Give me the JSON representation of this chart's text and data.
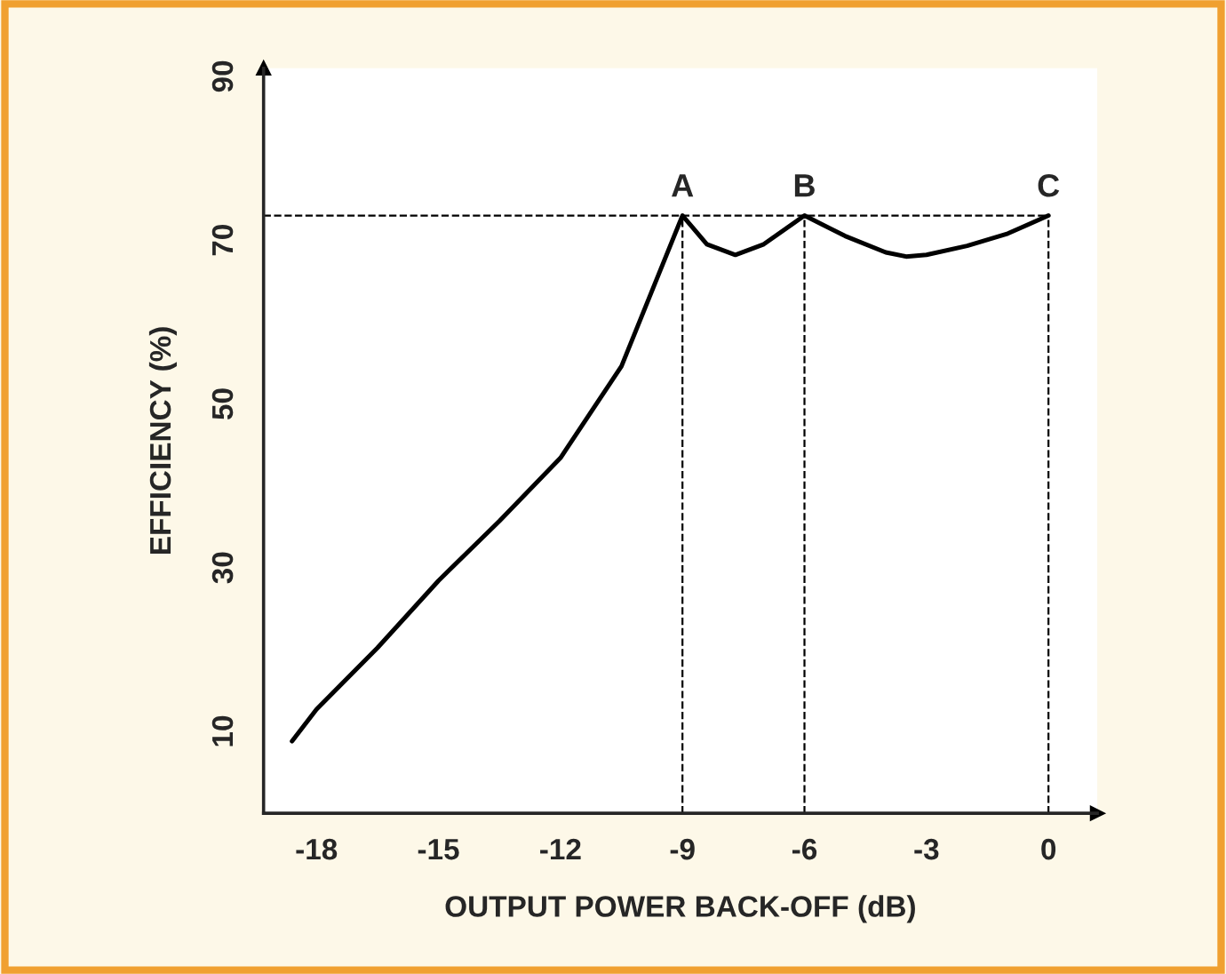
{
  "chart_data": {
    "type": "line",
    "xlabel": "OUTPUT POWER BACK-OFF (dB)",
    "ylabel": "EFFICIENCY (%)",
    "x": [
      -18.6,
      -18,
      -16.5,
      -15,
      -13.5,
      -12,
      -10.5,
      -9,
      -8.4,
      -7.7,
      -7,
      -6,
      -5,
      -4,
      -3.5,
      -3,
      -2,
      -1,
      0
    ],
    "series": [
      {
        "color": "#000000",
        "values": [
          8.8,
          12.7,
          20.2,
          28.4,
          35.7,
          43.4,
          54.6,
          73,
          69.5,
          68.2,
          69.5,
          73,
          70.5,
          68.5,
          68,
          68.2,
          69.3,
          70.8,
          73
        ]
      }
    ],
    "xlim": [
      -19.3,
      1.2
    ],
    "ylim": [
      0,
      91
    ],
    "xticks": [
      -18,
      -15,
      -12,
      -9,
      -6,
      -3,
      0
    ],
    "yticks": [
      10,
      30,
      50,
      70,
      90
    ],
    "ref_lines": [
      {
        "axis": "x",
        "value": -9,
        "line_style": "dashed",
        "color": "#000000"
      },
      {
        "axis": "x",
        "value": -6,
        "line_style": "dashed",
        "color": "#000000"
      },
      {
        "axis": "x",
        "value": 0,
        "line_style": "dashed",
        "color": "#000000"
      },
      {
        "axis": "y",
        "value": 73,
        "line_style": "dashed",
        "color": "#000000"
      }
    ],
    "annotations": [
      {
        "text": "A",
        "x": -9,
        "y": 73
      },
      {
        "text": "B",
        "x": -6,
        "y": 73
      },
      {
        "text": "C",
        "x": 0,
        "y": 73
      }
    ],
    "grid": false,
    "legend": false,
    "marker": "none",
    "line_style": "solid"
  }
}
